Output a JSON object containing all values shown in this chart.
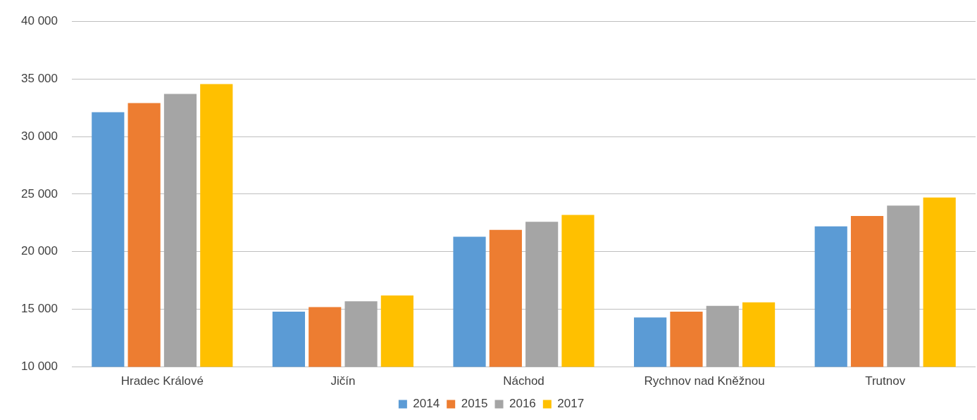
{
  "chart_data": {
    "type": "bar",
    "categories": [
      "Hradec Králové",
      "Jičín",
      "Náchod",
      "Rychnov nad Kněžnou",
      "Trutnov"
    ],
    "series": [
      {
        "name": "2014",
        "color": "#5b9bd5",
        "values": [
          32100,
          14800,
          21300,
          14300,
          22200
        ]
      },
      {
        "name": "2015",
        "color": "#ed7d31",
        "values": [
          32900,
          15200,
          21900,
          14800,
          23100
        ]
      },
      {
        "name": "2016",
        "color": "#a5a5a5",
        "values": [
          33700,
          15700,
          22600,
          15300,
          24000
        ]
      },
      {
        "name": "2017",
        "color": "#ffc000",
        "values": [
          34550,
          16200,
          23200,
          15600,
          24700
        ]
      }
    ],
    "ylim": [
      10000,
      40000
    ],
    "yticks": [
      {
        "value": 10000,
        "label": "10 000"
      },
      {
        "value": 15000,
        "label": "15 000"
      },
      {
        "value": 20000,
        "label": "20 000"
      },
      {
        "value": 25000,
        "label": "25 000"
      },
      {
        "value": 30000,
        "label": "30 000"
      },
      {
        "value": 35000,
        "label": "35 000"
      },
      {
        "value": 40000,
        "label": "40 000"
      }
    ],
    "grid": "y",
    "legend": "bottom"
  }
}
